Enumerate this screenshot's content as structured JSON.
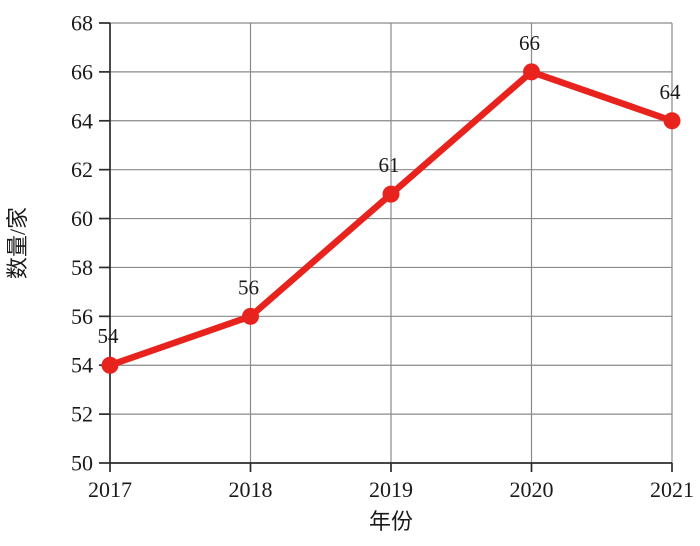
{
  "chart_data": {
    "type": "line",
    "categories": [
      "2017",
      "2018",
      "2019",
      "2020",
      "2021"
    ],
    "values": [
      54,
      56,
      61,
      66,
      64
    ],
    "point_labels": [
      "54",
      "56",
      "61",
      "66",
      "64"
    ],
    "title": "",
    "xlabel": "年份",
    "ylabel": "数量/家",
    "ylim": [
      50,
      68
    ],
    "ytick_step": 2,
    "grid": true,
    "legend_position": "none",
    "series_color": "#e8231e",
    "grid_color": "#8a8a8a",
    "axis_color": "#2b2b2b",
    "text_color": "#1a1a1a"
  }
}
